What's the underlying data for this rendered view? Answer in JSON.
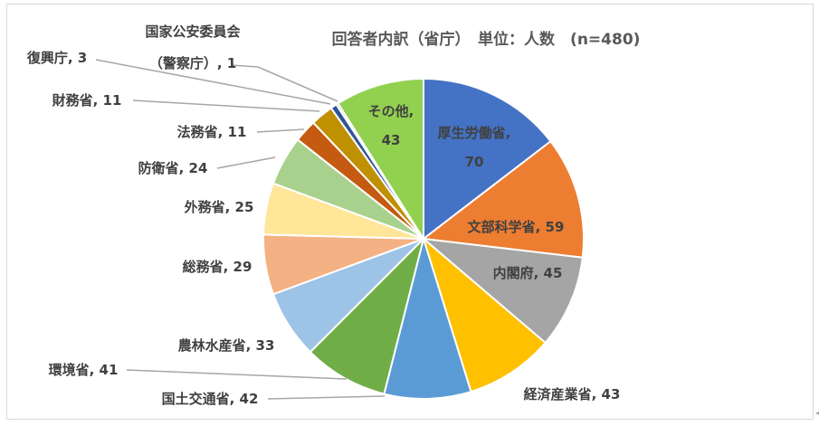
{
  "chart_data": {
    "type": "pie",
    "title": "回答者内訳（省庁）　単位：人数　(n=480)",
    "total": 480,
    "slices": [
      {
        "label": "厚生労働省",
        "value": 70,
        "color": "#4472c4"
      },
      {
        "label": "文部科学省",
        "value": 59,
        "color": "#ed7d31"
      },
      {
        "label": "内閣府",
        "value": 45,
        "color": "#a5a5a5"
      },
      {
        "label": "経済産業省",
        "value": 43,
        "color": "#ffc000"
      },
      {
        "label": "国土交通省",
        "value": 42,
        "color": "#5b9bd5"
      },
      {
        "label": "環境省",
        "value": 41,
        "color": "#70ad47"
      },
      {
        "label": "農林水産省",
        "value": 33,
        "color": "#9dc3e6"
      },
      {
        "label": "総務省",
        "value": 29,
        "color": "#f4b183"
      },
      {
        "label": "外務省",
        "value": 25,
        "color": "#ffe699"
      },
      {
        "label": "防衛省",
        "value": 24,
        "color": "#a9d18e"
      },
      {
        "label": "法務省",
        "value": 11,
        "color": "#c55a11"
      },
      {
        "label": "財務省",
        "value": 11,
        "color": "#bf9000"
      },
      {
        "label": "復興庁",
        "value": 3,
        "color": "#2f5597"
      },
      {
        "label": "国家公安委員会（警察庁）",
        "value": 1,
        "color": "#843c0c"
      },
      {
        "label": "その他",
        "value": 43,
        "color": "#92d050"
      }
    ],
    "data_labels": [
      {
        "lines": [
          "厚生労働省,",
          "70"
        ],
        "inside": true
      },
      {
        "lines": [
          "文部科学省, 59"
        ],
        "inside": true
      },
      {
        "lines": [
          "内閣府, 45"
        ],
        "inside": true
      },
      {
        "lines": [
          "経済産業省, 43"
        ],
        "inside": false
      },
      {
        "lines": [
          "国土交通省, 42"
        ],
        "inside": false
      },
      {
        "lines": [
          "環境省, 41"
        ],
        "inside": false
      },
      {
        "lines": [
          "農林水産省, 33"
        ],
        "inside": false
      },
      {
        "lines": [
          "総務省, 29"
        ],
        "inside": false
      },
      {
        "lines": [
          "外務省, 25"
        ],
        "inside": false
      },
      {
        "lines": [
          "防衛省, 24"
        ],
        "inside": false
      },
      {
        "lines": [
          "法務省, 11"
        ],
        "inside": false
      },
      {
        "lines": [
          "財務省, 11"
        ],
        "inside": false
      },
      {
        "lines": [
          "復興庁, 3"
        ],
        "inside": false
      },
      {
        "lines": [
          "国家公安委員会",
          "（警察庁）, 1"
        ],
        "inside": false
      },
      {
        "lines": [
          "その他,",
          "43"
        ],
        "inside": true
      }
    ],
    "legend": "none"
  }
}
